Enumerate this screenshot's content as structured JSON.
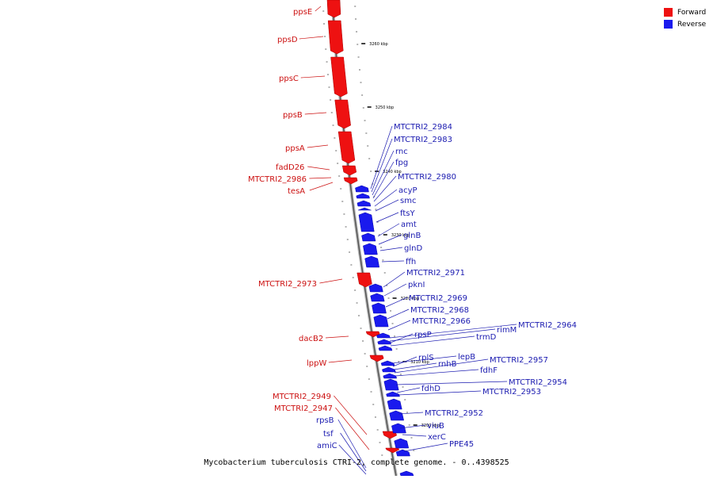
{
  "title": "Mycobacterium tuberculosis CTRI-2, complete genome. - 0..4398525",
  "colors": {
    "forward": "#ee1111",
    "reverse": "#1a1aee",
    "forward_label": "#cc1111",
    "reverse_label": "#1a1ab0"
  },
  "legend": [
    {
      "label": "Forward",
      "color": "#ee1111"
    },
    {
      "label": "Reverse",
      "color": "#1a1aee"
    }
  ],
  "ruler_ticks": [
    "3260 kbp",
    "3250 kbp",
    "3240 kbp",
    "3230 kbp",
    "3220 kbp",
    "3210 kbp",
    "3200 kbp"
  ],
  "forward_genes": [
    "ppsE",
    "ppsD",
    "ppsC",
    "ppsB",
    "ppsA",
    "fadD26",
    "MTCTRI2_2986",
    "tesA",
    "MTCTRI2_2973",
    "dacB2",
    "lppW",
    "MTCTRI2_2949",
    "MTCTRI2_2947"
  ],
  "reverse_genes_left": [
    "rpsB",
    "tsf",
    "amiC"
  ],
  "reverse_genes": [
    "MTCTRI2_2984",
    "MTCTRI2_2983",
    "rnc",
    "fpg",
    "MTCTRI2_2980",
    "acyP",
    "smc",
    "ftsY",
    "amt",
    "glnB",
    "glnD",
    "ffh",
    "MTCTRI2_2971",
    "pknI",
    "MTCTRI2_2969",
    "MTCTRI2_2968",
    "MTCTRI2_2966",
    "MTCTRI2_2964",
    "rimM",
    "rpsP",
    "trmD",
    "lepB",
    "rplS",
    "rnhB",
    "MTCTRI2_2957",
    "fdhF",
    "MTCTRI2_2954",
    "fdhD",
    "MTCTRI2_2953",
    "MTCTRI2_2952",
    "viuB",
    "xerC",
    "PPE45"
  ]
}
